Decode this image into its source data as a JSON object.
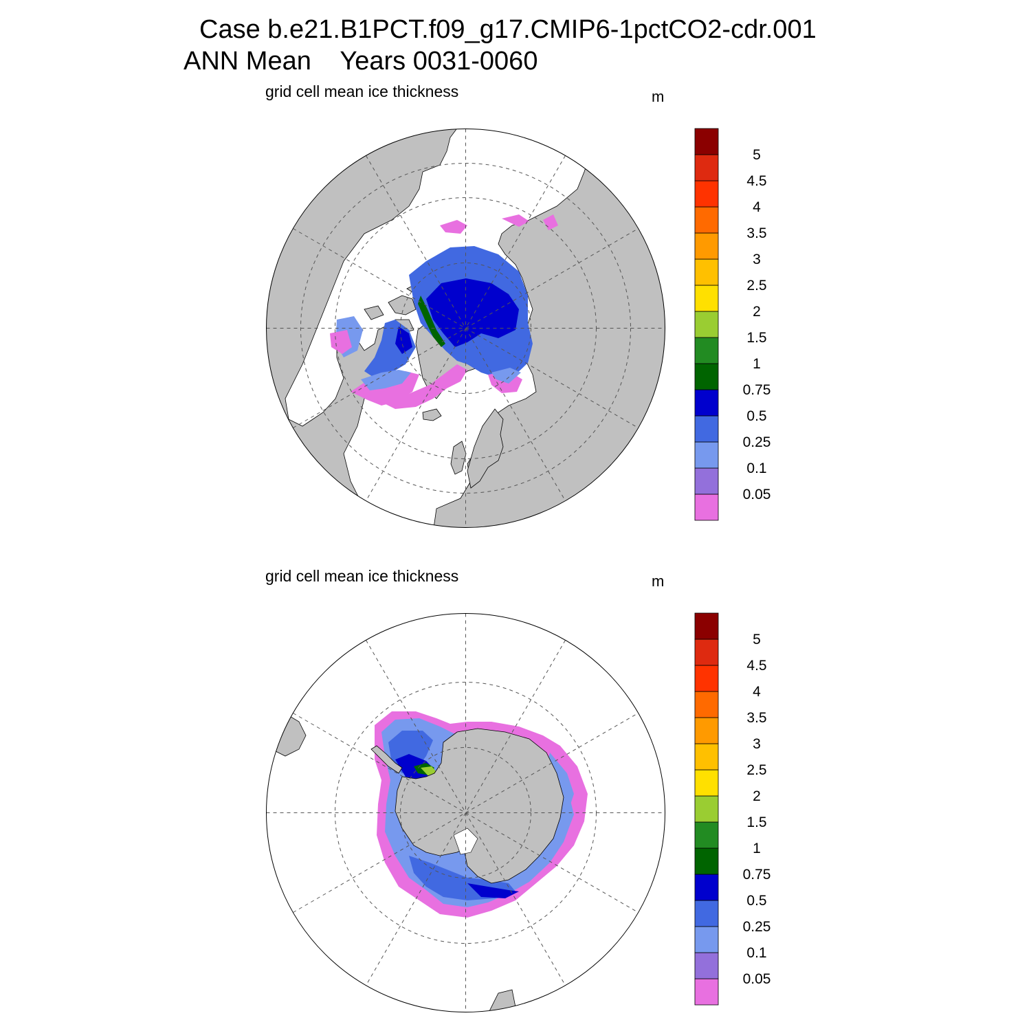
{
  "title": {
    "line1": "Case b.e21.B1PCT.f09_g17.CMIP6-1pctCO2-cdr.001",
    "line2": "ANN Mean    Years 0031-0060"
  },
  "panels": [
    {
      "id": "north",
      "hemisphere": "Northern Hemisphere polar stereographic",
      "variable_label": "grid cell mean ice thickness",
      "units": "m"
    },
    {
      "id": "south",
      "hemisphere": "Southern Hemisphere polar stereographic",
      "variable_label": "grid cell mean ice thickness",
      "units": "m"
    }
  ],
  "colorbar": {
    "levels": [
      "0.05",
      "0.1",
      "0.25",
      "0.5",
      "0.75",
      "1",
      "1.5",
      "2",
      "2.5",
      "3",
      "3.5",
      "4",
      "4.5",
      "5"
    ],
    "colors": [
      "#e870e0",
      "#9370db",
      "#7799ee",
      "#4169e1",
      "#0000cd",
      "#006400",
      "#228b22",
      "#9acd32",
      "#ffe000",
      "#ffc000",
      "#ff9a00",
      "#ff6a00",
      "#ff3300",
      "#de2a10",
      "#8b0000"
    ]
  },
  "colors": {
    "land": "#c0c0c0",
    "ocean_no_ice": "#ffffff",
    "coastline": "#000000",
    "graticule": "#555555"
  }
}
